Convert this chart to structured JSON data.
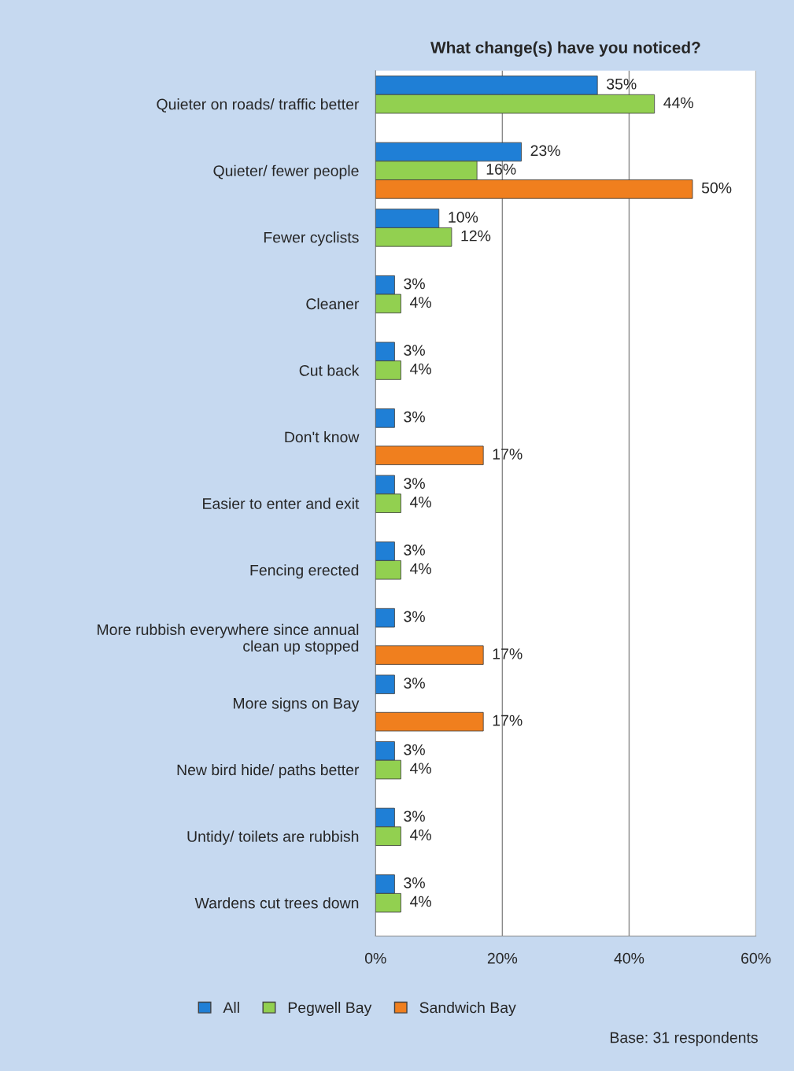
{
  "chart_data": {
    "type": "bar",
    "orientation": "horizontal",
    "title": "What change(s) have you noticed?",
    "categories": [
      "Quieter on roads/ traffic better",
      "Quieter/ fewer people",
      "Fewer cyclists",
      "Cleaner",
      "Cut back",
      "Don't know",
      "Easier to enter and exit",
      "Fencing erected",
      "More rubbish everywhere since annual\nclean up stopped",
      "More signs on Bay",
      "New bird hide/ paths better",
      "Untidy/ toilets are rubbish",
      "Wardens cut trees down"
    ],
    "series": [
      {
        "name": "All",
        "color": "#1f7fd6",
        "values": [
          35,
          23,
          10,
          3,
          3,
          3,
          3,
          3,
          3,
          3,
          3,
          3,
          3
        ],
        "value_labels": [
          "35%",
          "23%",
          "10%",
          "3%",
          "3%",
          "3%",
          "3%",
          "3%",
          "3%",
          "3%",
          "3%",
          "3%",
          "3%"
        ]
      },
      {
        "name": "Pegwell Bay",
        "color": "#92d050",
        "values": [
          44,
          16,
          12,
          4,
          4,
          null,
          4,
          4,
          null,
          null,
          4,
          4,
          4
        ],
        "value_labels": [
          "44%",
          "16%",
          "12%",
          "4%",
          "4%",
          null,
          "4%",
          "4%",
          null,
          null,
          "4%",
          "4%",
          "4%"
        ]
      },
      {
        "name": "Sandwich Bay",
        "color": "#f07f1e",
        "values": [
          null,
          50,
          null,
          null,
          null,
          17,
          null,
          null,
          17,
          17,
          null,
          null,
          null
        ],
        "value_labels": [
          null,
          "50%",
          null,
          null,
          null,
          "17%",
          null,
          null,
          "17%",
          "17%",
          null,
          null,
          null
        ]
      }
    ],
    "xlim": [
      0,
      60
    ],
    "xticks": [
      {
        "value": 0,
        "label": "0%"
      },
      {
        "value": 20,
        "label": "20%"
      },
      {
        "value": 40,
        "label": "40%"
      },
      {
        "value": 60,
        "label": "60%"
      }
    ],
    "grid": "x",
    "legend": "bottom",
    "annotations": [
      "Base: 31 respondents"
    ]
  }
}
